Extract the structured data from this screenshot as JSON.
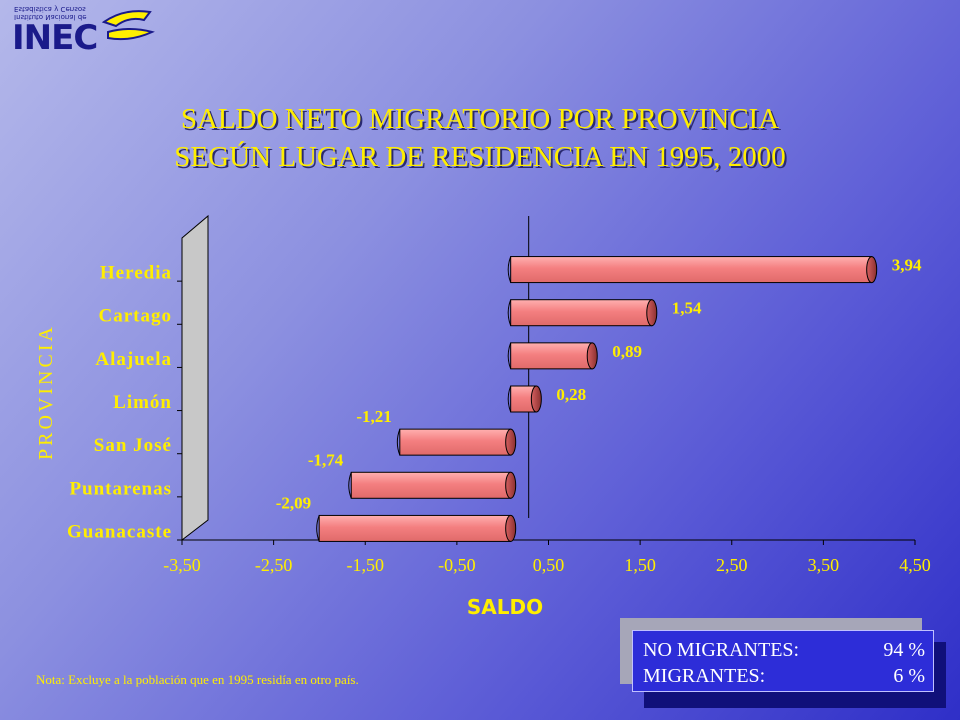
{
  "logo": {
    "text": "INEC",
    "subtitle_line1": "Instituto Nacional de",
    "subtitle_line2": "Estadística y Censos"
  },
  "title": {
    "line1": "SALDO NETO MIGRATORIO POR PROVINCIA",
    "line2": "SEGÚN LUGAR DE RESIDENCIA EN 1995, 2000"
  },
  "chart_data": {
    "type": "bar",
    "orientation": "horizontal",
    "categories": [
      "Heredia",
      "Cartago",
      "Alajuela",
      "Limón",
      "San José",
      "Puntarenas",
      "Guanacaste"
    ],
    "values": [
      3.94,
      1.54,
      0.89,
      0.28,
      -1.21,
      -1.74,
      -2.09
    ],
    "data_labels": [
      "3,94",
      "1,54",
      "0,89",
      "0,28",
      "-1,21",
      "-1,74",
      "-2,09"
    ],
    "xlabel": "SALDO",
    "ylabel": "PROVINCIA",
    "xlim": [
      -3.5,
      4.5
    ],
    "x_ticks": [
      "-3,50",
      "-2,50",
      "-1,50",
      "-0,50",
      "0,50",
      "1,50",
      "2,50",
      "3,50",
      "4,50"
    ],
    "x_tick_values": [
      -3.5,
      -2.5,
      -1.5,
      -0.5,
      0.5,
      1.5,
      2.5,
      3.5,
      4.5
    ],
    "grid": false,
    "legend": "none",
    "colors": {
      "bar": "#f47f80",
      "bar_end": "#b84848",
      "axis_text": "#ffee00",
      "wall": "#c8c8c8"
    }
  },
  "note": "Nota: Excluye a la población que en 1995  residía en otro país.",
  "summary": {
    "rows": [
      {
        "label": "NO MIGRANTES:",
        "value": "94 %"
      },
      {
        "label": "MIGRANTES:",
        "value": "6 %"
      }
    ]
  }
}
